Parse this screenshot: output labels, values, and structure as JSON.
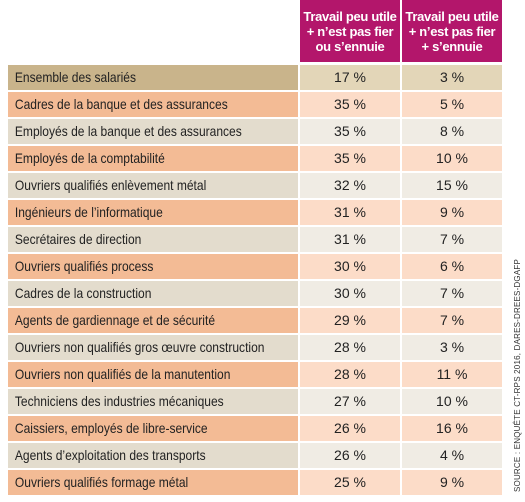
{
  "table": {
    "header": [
      "Travail peu utile\n+ n’est pas fier\nou s’ennuie",
      "Travail peu utile\n+ n’est pas fier\n+ s’ennuie"
    ],
    "rows": [
      [
        "Ensemble des salariés",
        "17 %",
        "3 %"
      ],
      [
        "Cadres de la banque et des assurances",
        "35 %",
        "5 %"
      ],
      [
        "Employés de la banque et des assurances",
        "35 %",
        "8 %"
      ],
      [
        "Employés de la comptabilité",
        "35 %",
        "10 %"
      ],
      [
        "Ouvriers qualifiés enlèvement métal",
        "32 %",
        "15 %"
      ],
      [
        "Ingénieurs de l’informatique",
        "31 %",
        "9 %"
      ],
      [
        "Secrétaires de direction",
        "31 %",
        "7 %"
      ],
      [
        "Ouvriers qualifiés process",
        "30 %",
        "6 %"
      ],
      [
        "Cadres de la construction",
        "30 %",
        "7 %"
      ],
      [
        "Agents de gardiennage et de sécurité",
        "29 %",
        "7 %"
      ],
      [
        "Ouvriers non qualifiés gros œuvre construction",
        "28 %",
        "3 %"
      ],
      [
        "Ouvriers non qualifiés de la manutention",
        "28 %",
        "11 %"
      ],
      [
        "Techniciens des industries mécaniques",
        "27 %",
        "10 %"
      ],
      [
        "Caissiers, employés de libre-service",
        "26 %",
        "16 %"
      ],
      [
        "Agents d’exploitation des transports",
        "26 %",
        "4 %"
      ],
      [
        "Ouvriers qualifiés formage métal",
        "25 %",
        "9 %"
      ]
    ]
  },
  "source": "SOURCE : ENQUÊTE CT-RPS 2016, DARES-DREES-DGAFP"
}
